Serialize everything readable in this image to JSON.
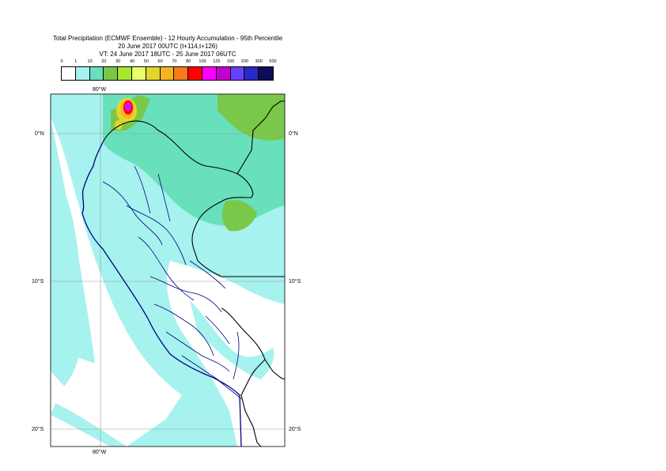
{
  "title": {
    "line1": "Total Precipitation (ECMWF Ensemble) - 12 Hourly Accumulation - 95th Percentile",
    "line2": "20 June 2017 00UTC (t+114,t+126)",
    "line3": "VT: 24 June 2017 18UTC - 25 June 2017 06UTC"
  },
  "legend": {
    "ticks": [
      "0",
      "1",
      "10",
      "20",
      "30",
      "40",
      "50",
      "60",
      "70",
      "80",
      "100",
      "125",
      "150",
      "200",
      "300",
      "500"
    ],
    "colors": [
      "#ffffff",
      "#a6f2ee",
      "#68e0bc",
      "#79c84a",
      "#a6e630",
      "#e9ff69",
      "#e3d62b",
      "#f5b422",
      "#f77b1a",
      "#ff0000",
      "#ff00ff",
      "#c400d0",
      "#6a40ff",
      "#2a28c8",
      "#0d0d5a"
    ]
  },
  "map": {
    "lat_labels": [
      "0°N",
      "10°S",
      "20°S"
    ],
    "lon_labels": [
      "80°W",
      "80°W"
    ],
    "colors": {
      "ocean": "#a6f2ee",
      "land_light": "#a6f2ee",
      "band_10_20": "#68e0bc",
      "band_20_30": "#79c84a",
      "band_40": "#e3d62b",
      "band_high": "#ff00ff",
      "coast": "#000080",
      "border": "#000000",
      "grid": "#999999"
    }
  }
}
